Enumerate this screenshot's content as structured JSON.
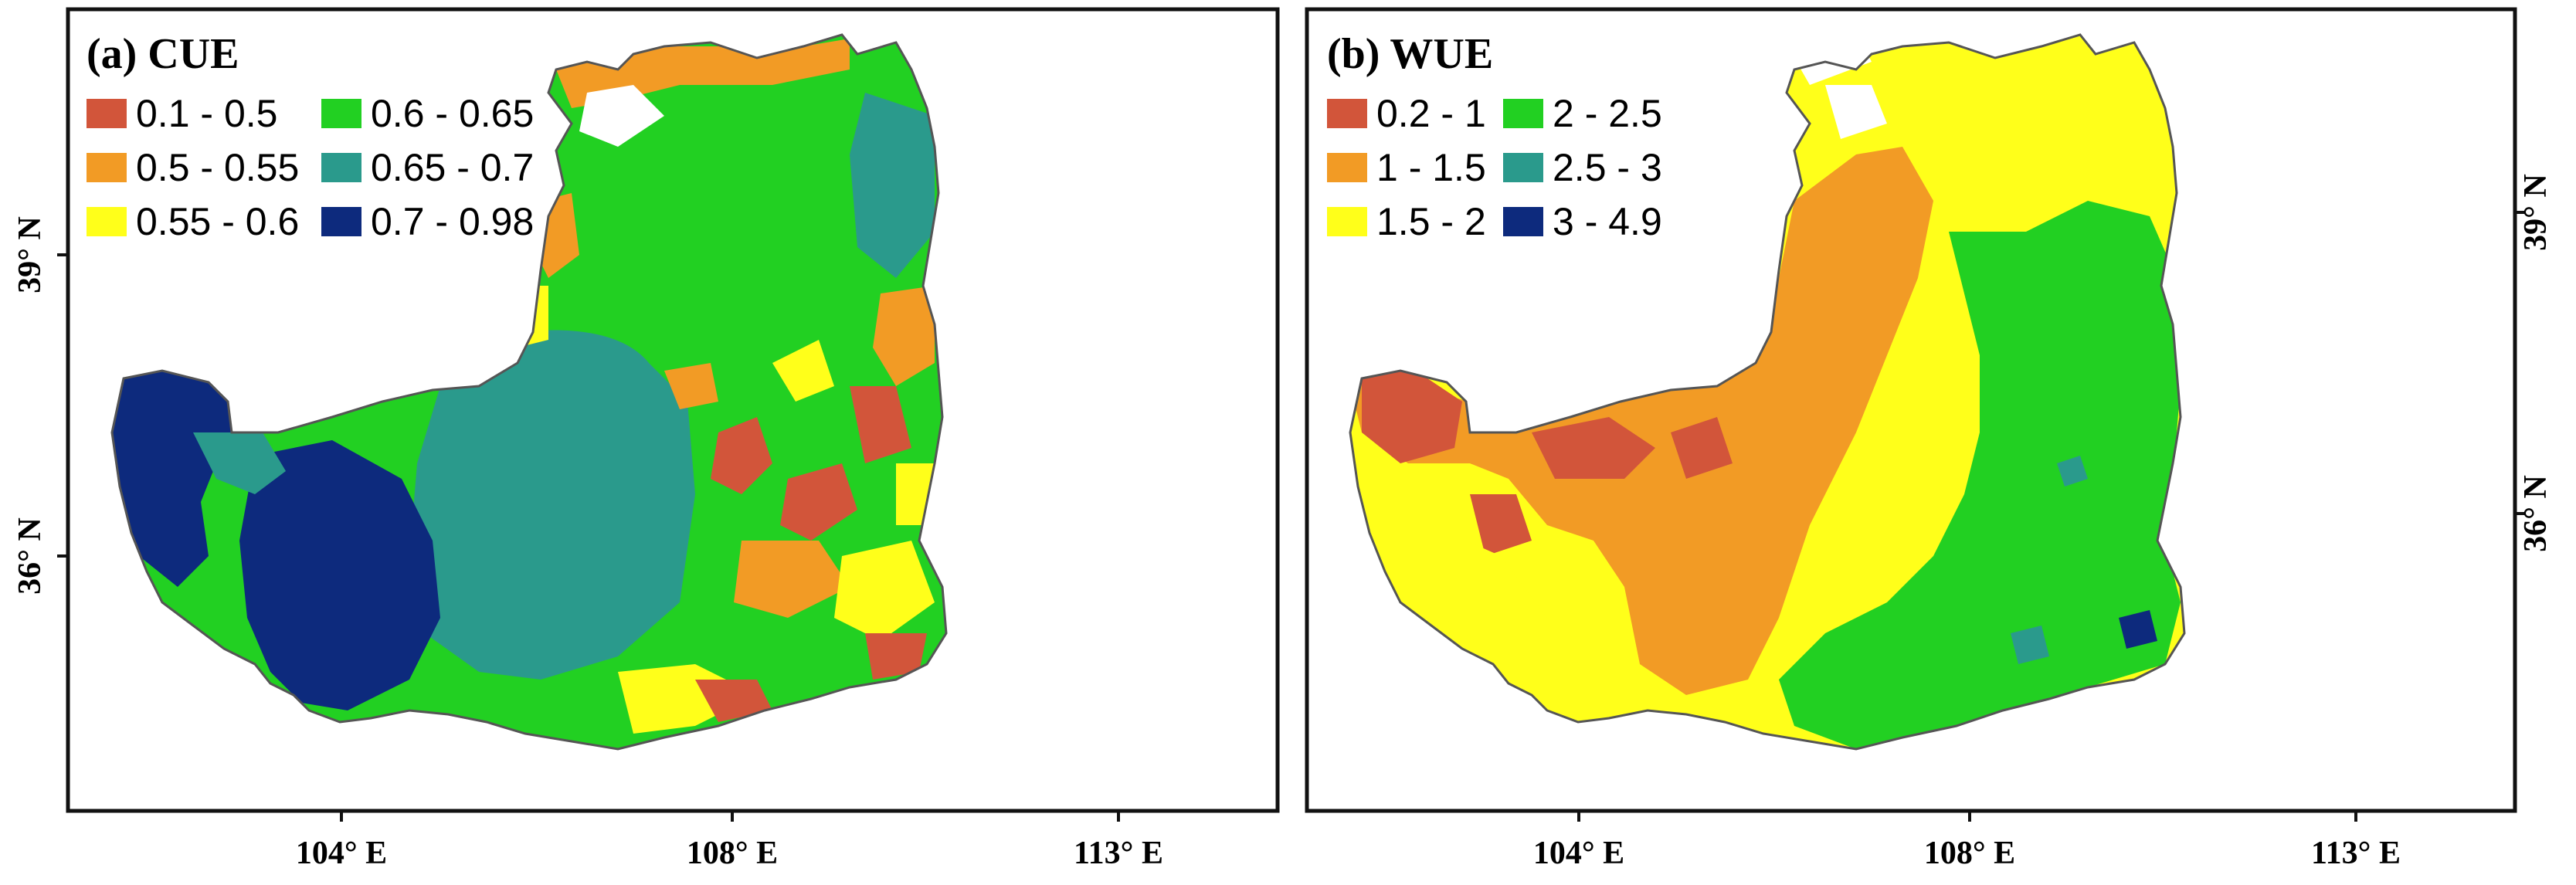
{
  "panels": [
    {
      "id": "cue",
      "title": "(a) CUE",
      "legend": [
        {
          "label": "0.1 - 0.5",
          "color": "#d2553a"
        },
        {
          "label": "0.5 - 0.55",
          "color": "#f29b25"
        },
        {
          "label": "0.55 - 0.6",
          "color": "#ffff1a"
        },
        {
          "label": "0.6 - 0.65",
          "color": "#22d022"
        },
        {
          "label": "0.65 - 0.7",
          "color": "#2a9a8c"
        },
        {
          "label": "0.7 - 0.98",
          "color": "#0d2a7d"
        }
      ],
      "x_ticks": [
        "104° E",
        "108° E",
        "113° E"
      ],
      "y_ticks": [
        "39° N",
        "36° N"
      ]
    },
    {
      "id": "wue",
      "title": "(b) WUE",
      "legend": [
        {
          "label": "0.2 - 1",
          "color": "#d2553a"
        },
        {
          "label": "1 - 1.5",
          "color": "#f29b25"
        },
        {
          "label": "1.5 - 2",
          "color": "#ffff1a"
        },
        {
          "label": "2 - 2.5",
          "color": "#22d022"
        },
        {
          "label": "2.5 - 3",
          "color": "#2a9a8c"
        },
        {
          "label": "3 - 4.9",
          "color": "#0d2a7d"
        }
      ],
      "x_ticks": [
        "104° E",
        "108° E",
        "113° E"
      ],
      "y_ticks": [
        "39° N",
        "36° N"
      ]
    }
  ],
  "colors": {
    "red": "#d2553a",
    "orange": "#f29b25",
    "yellow": "#ffff1a",
    "green": "#22d022",
    "teal": "#2a9a8c",
    "navy": "#0d2a7d",
    "outline": "#555555"
  }
}
